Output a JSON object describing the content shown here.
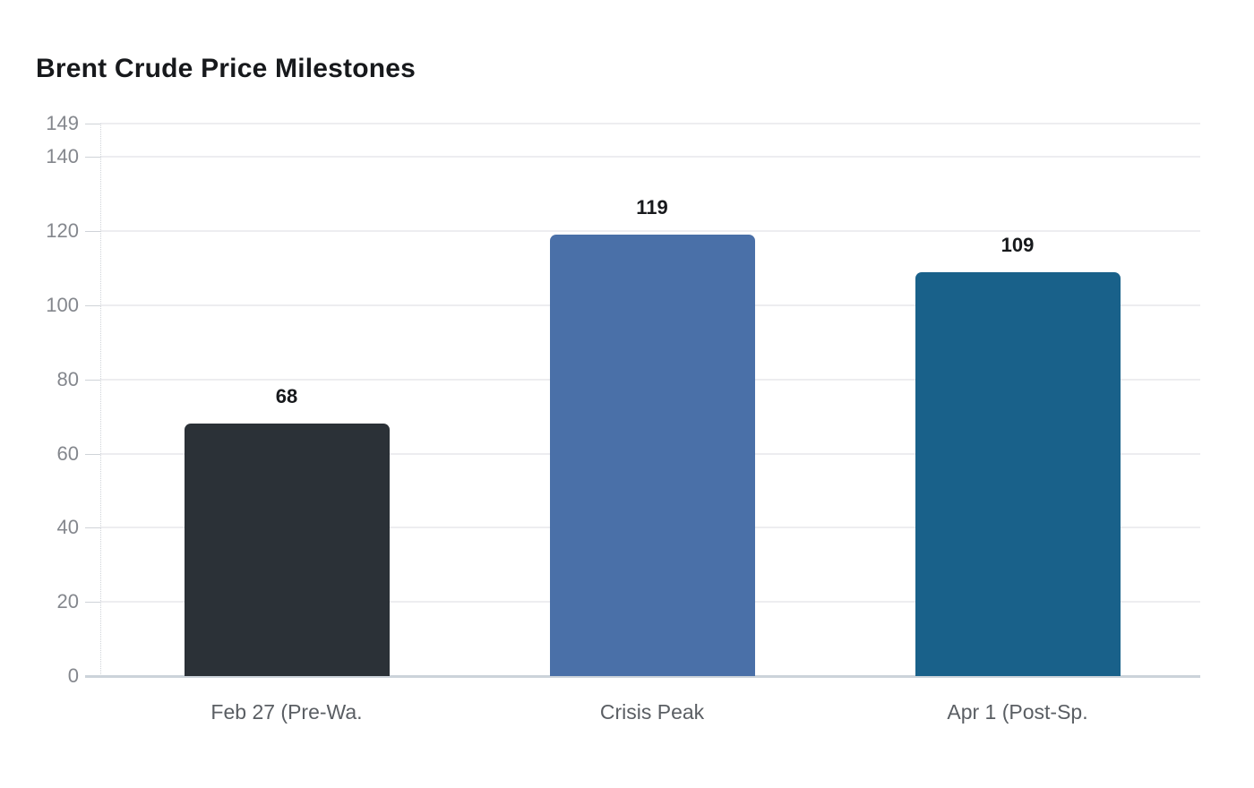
{
  "title": "Brent Crude Price Milestones",
  "chart_data": {
    "type": "bar",
    "title": "Brent Crude Price Milestones",
    "categories": [
      "Feb 27 (Pre-Wa.",
      "Crisis Peak",
      "Apr 1 (Post-Sp."
    ],
    "values": [
      68,
      119,
      109
    ],
    "value_labels": [
      "68",
      "119",
      "109"
    ],
    "bar_colors": [
      "#2b3137",
      "#4a70a8",
      "#19618a"
    ],
    "xlabel": "",
    "ylabel": "",
    "ylim": [
      0,
      149
    ],
    "yticks": [
      0,
      20,
      40,
      60,
      80,
      100,
      120,
      140,
      149
    ],
    "ytick_labels": [
      "0",
      "20",
      "40",
      "60",
      "80",
      "100",
      "120",
      "140",
      "149"
    ],
    "grid": true,
    "legend": false,
    "style": {
      "background": "#ffffff",
      "title_color": "#17191c",
      "grid_color": "#ededf0",
      "baseline_color": "#ccd3da",
      "axis_line_color": "#cfd3d8",
      "tick_mark_color": "#cfd3d8",
      "y_tick_label_color": "#84878d",
      "x_label_color": "#5a5e63",
      "value_label_color": "#17191c"
    }
  }
}
